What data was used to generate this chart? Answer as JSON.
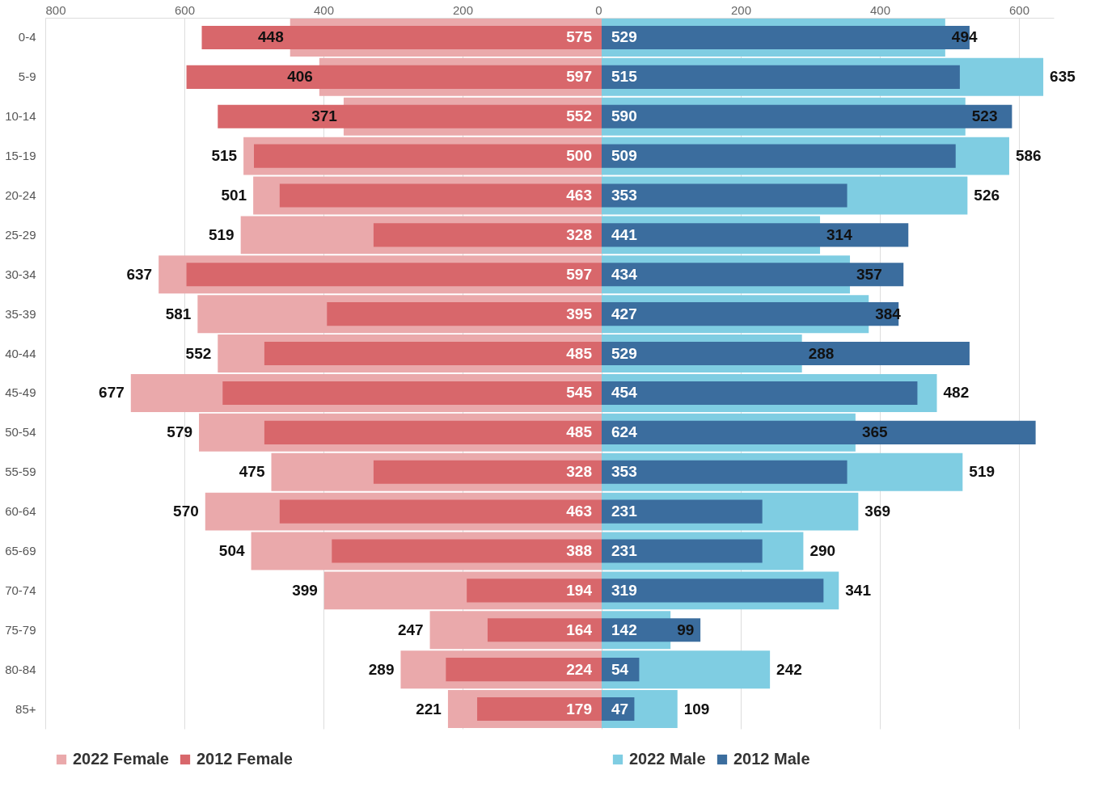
{
  "chart_data": [
    {
      "type": "bar",
      "orientation": "horizontal",
      "categories": [
        "0-4",
        "5-9",
        "10-14",
        "15-19",
        "20-24",
        "25-29",
        "30-34",
        "35-39",
        "40-44",
        "45-49",
        "50-54",
        "55-59",
        "60-64",
        "65-69",
        "70-74",
        "75-79",
        "80-84",
        "85+"
      ],
      "series": [
        {
          "name": "2022 Female",
          "color": "#eaa9ab",
          "values": [
            448,
            406,
            371,
            515,
            501,
            519,
            637,
            581,
            552,
            677,
            579,
            475,
            570,
            504,
            399,
            247,
            289,
            221
          ]
        },
        {
          "name": "2012 Female",
          "color": "#d8676b",
          "values": [
            575,
            597,
            552,
            500,
            463,
            328,
            597,
            395,
            485,
            545,
            485,
            328,
            463,
            388,
            194,
            164,
            224,
            179
          ]
        }
      ],
      "data_labels": true,
      "xlim": [
        800,
        0
      ],
      "xticks": [
        800,
        600,
        400,
        200,
        0
      ],
      "grid": "x",
      "legend": "bottom"
    },
    {
      "type": "bar",
      "orientation": "horizontal",
      "categories": [
        "0-4",
        "5-9",
        "10-14",
        "15-19",
        "20-24",
        "25-29",
        "30-34",
        "35-39",
        "40-44",
        "45-49",
        "50-54",
        "55-59",
        "60-64",
        "65-69",
        "70-74",
        "75-79",
        "80-84",
        "85+"
      ],
      "series": [
        {
          "name": "2022 Male",
          "color": "#7fcde2",
          "values": [
            494,
            635,
            523,
            586,
            526,
            314,
            357,
            384,
            288,
            482,
            365,
            519,
            369,
            290,
            341,
            99,
            242,
            109
          ]
        },
        {
          "name": "2012 Male",
          "color": "#3b6d9e",
          "values": [
            529,
            515,
            590,
            509,
            353,
            441,
            434,
            427,
            529,
            454,
            624,
            353,
            231,
            231,
            319,
            142,
            54,
            47
          ]
        }
      ],
      "data_labels": true,
      "xlim": [
        0,
        650
      ],
      "xticks": [
        200,
        400,
        600
      ],
      "grid": "x",
      "legend": "bottom",
      "tick_labels": "x"
    }
  ]
}
